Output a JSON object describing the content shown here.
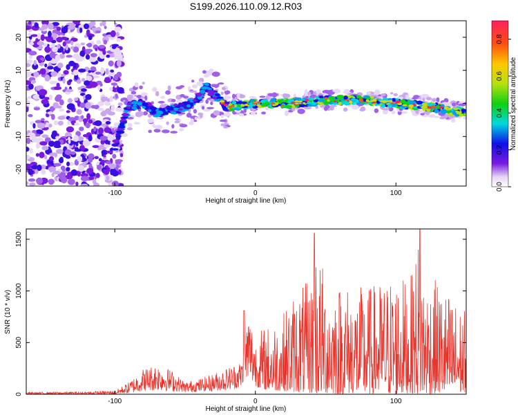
{
  "title": "S199.2026.110.09.12.R03",
  "chart_data": [
    {
      "type": "heatmap",
      "xlabel": "Height of straight line (km)",
      "ylabel": "Frequency (Hz)",
      "xlim": [
        -163,
        150
      ],
      "ylim": [
        -25,
        25
      ],
      "xticks": [
        -100,
        0,
        100
      ],
      "yticks": [
        -20,
        -10,
        0,
        10,
        20
      ],
      "colorbar": {
        "label": "Normalized spectral amplitude",
        "range": [
          0,
          0.9
        ],
        "ticks": [
          0.0,
          0.2,
          0.4,
          0.6,
          0.8
        ]
      },
      "ridge": {
        "description_points_x": [
          -163,
          -100,
          -90,
          -80,
          -70,
          -60,
          -50,
          -40,
          -35,
          -25,
          -20,
          0,
          25,
          50,
          75,
          100,
          125,
          150
        ],
        "frequency": [
          0,
          -13,
          -1,
          0,
          -3,
          -2,
          -1,
          2,
          5,
          1,
          -1,
          0,
          0,
          1,
          1,
          0,
          -1,
          -3
        ]
      }
    },
    {
      "type": "line",
      "xlabel": "Height of straight line (km)",
      "ylabel": "SNR (10 * v/v)",
      "xlim": [
        -163,
        150
      ],
      "ylim": [
        0,
        1600
      ],
      "xticks": [
        -100,
        0,
        100
      ],
      "yticks": [
        0,
        500,
        1000,
        1500
      ],
      "series_color": "#e8322a",
      "envelope": {
        "x": [
          -163,
          -120,
          -100,
          -90,
          -80,
          -70,
          -60,
          -50,
          -40,
          -30,
          -20,
          -10,
          -5,
          0,
          5,
          10,
          20,
          30,
          40,
          42,
          50,
          60,
          70,
          80,
          90,
          100,
          110,
          117,
          120,
          130,
          140,
          150
        ],
        "max": [
          20,
          25,
          35,
          120,
          250,
          300,
          240,
          120,
          150,
          200,
          260,
          330,
          820,
          560,
          650,
          680,
          800,
          1050,
          1100,
          1560,
          1150,
          1100,
          1050,
          1050,
          1100,
          1180,
          1100,
          1600,
          1150,
          1100,
          950,
          800
        ],
        "min": [
          0,
          0,
          0,
          10,
          30,
          40,
          30,
          20,
          25,
          30,
          40,
          60,
          120,
          80,
          50,
          40,
          30,
          20,
          10,
          0,
          10,
          0,
          10,
          0,
          10,
          0,
          10,
          0,
          0,
          10,
          0,
          20
        ]
      }
    }
  ]
}
